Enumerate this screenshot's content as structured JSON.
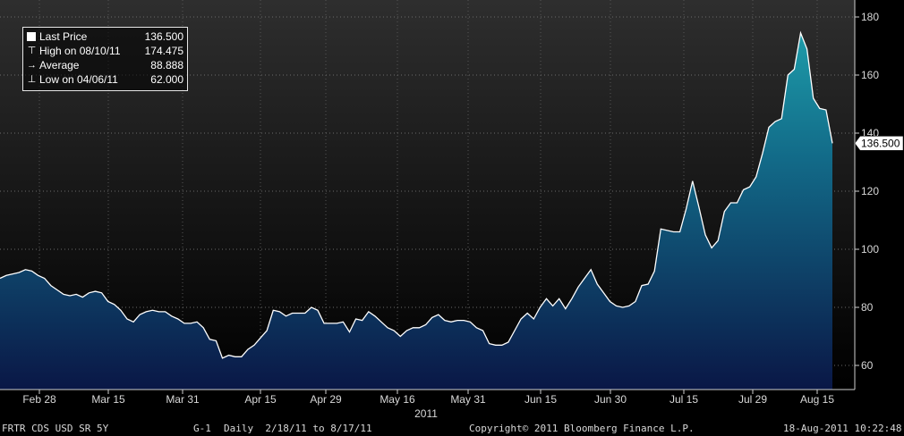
{
  "legend": {
    "last_price_label": "Last Price",
    "last_price_value": "136.500",
    "high_label": "High on 08/10/11",
    "high_value": "174.475",
    "avg_label": "Average",
    "avg_value": "88.888",
    "low_label": "Low on 04/06/11",
    "low_value": "62.000"
  },
  "footer": {
    "security": "FRTR CDS USD SR 5Y",
    "graph": "G-1",
    "period": "Daily  2/18/11 to 8/17/11",
    "copyright": "Copyright© 2011 Bloomberg Finance L.P.",
    "timestamp": "18-Aug-2011 10:22:48"
  },
  "colors": {
    "line": "#ffffff",
    "fill_top": "#1b8fa0",
    "fill_bottom": "#0a1a4a",
    "bg_top": "#2b2b2b",
    "bg_bottom": "#000000",
    "grid": "#5a5a5a"
  },
  "chart_data": {
    "type": "area",
    "title": "",
    "xlabel": "2011",
    "ylabel": "",
    "ylim": [
      50,
      185
    ],
    "yticks": [
      60,
      80,
      100,
      120,
      140,
      160,
      180
    ],
    "xticks": [
      "Feb 28",
      "Mar 15",
      "Mar 31",
      "Apr 15",
      "Apr 29",
      "May 16",
      "May 31",
      "Jun 15",
      "Jun 30",
      "Jul 15",
      "Jul 29",
      "Aug 15"
    ],
    "last_value_label": "136.500",
    "series": [
      {
        "name": "Last Price",
        "values": [
          90,
          91,
          91.5,
          92,
          93,
          92.5,
          91,
          90,
          87.5,
          86,
          84.5,
          84,
          84.5,
          83.5,
          85,
          85.5,
          85,
          82,
          81,
          79,
          76,
          75,
          77.5,
          78.5,
          79,
          78.5,
          78.5,
          77,
          76,
          74.5,
          74.5,
          75,
          73,
          69,
          68.5,
          62.5,
          63.5,
          63,
          63,
          65.5,
          67,
          69.5,
          72,
          79,
          78.5,
          77,
          78,
          78,
          78,
          80,
          79,
          74.5,
          74.5,
          74.5,
          75,
          71.5,
          76,
          75.5,
          78.5,
          77,
          75,
          73,
          72,
          70,
          72,
          73,
          73,
          74,
          76.5,
          77.5,
          75.5,
          75,
          75.5,
          75.5,
          75,
          73,
          72,
          67.5,
          67,
          67,
          68,
          72,
          76,
          78,
          76,
          80,
          83,
          80.5,
          83,
          79.5,
          83,
          87,
          90,
          93,
          88,
          85,
          82,
          80.5,
          80,
          80.5,
          82,
          87.5,
          88,
          92.5,
          107,
          106.5,
          106,
          106,
          114,
          123.5,
          114.5,
          105,
          100.5,
          103,
          113,
          116,
          116,
          120.5,
          121.5,
          125,
          133,
          142,
          144,
          145,
          160,
          162,
          174.5,
          169,
          152,
          148.5,
          148,
          136.5
        ]
      }
    ]
  }
}
